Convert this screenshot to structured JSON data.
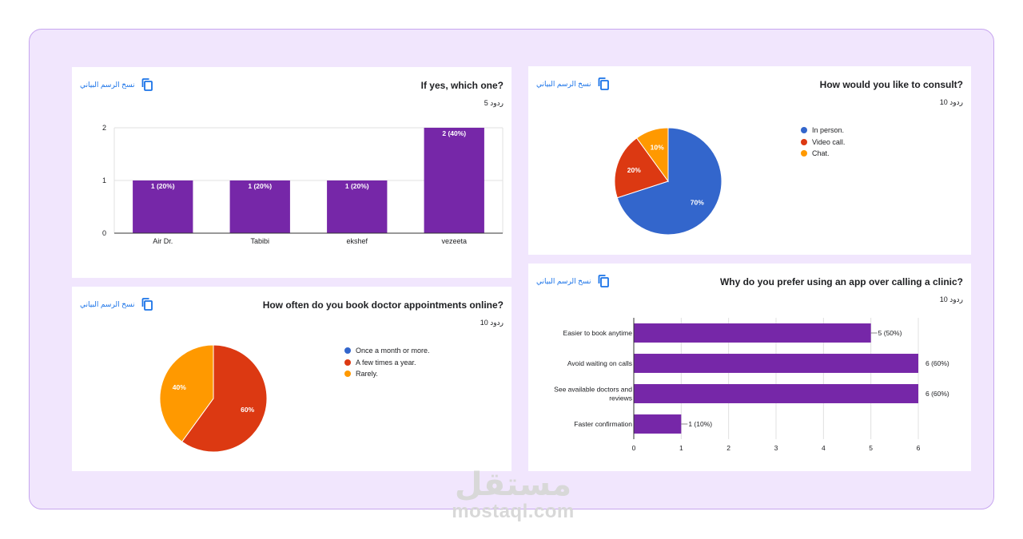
{
  "copy_chart_label": "نسخ الرسم البياني",
  "watermark": {
    "logo": "مستقل",
    "url": "mostaql.com"
  },
  "colors": {
    "purple": "#7627a8",
    "blue": "#3366cc",
    "red": "#dc3912",
    "orange": "#ff9900",
    "link": "#1a73e8"
  },
  "cards": {
    "q1": {
      "title": "If yes, which one?",
      "responses": "5 ردود"
    },
    "q2": {
      "title": "How would you like to consult?",
      "responses": "10 ردود"
    },
    "q3": {
      "title": "How often do you book doctor appointments online?",
      "responses": "10 ردود"
    },
    "q4": {
      "title": "Why do you prefer using an app over calling a clinic?",
      "responses": "10 ردود"
    }
  },
  "chart_data": [
    {
      "type": "bar",
      "categories": [
        "Air Dr.",
        "Tabibi",
        "ekshef",
        "vezeeta"
      ],
      "values": [
        1,
        1,
        1,
        2
      ],
      "data_labels": [
        "1 (20%)",
        "1 (20%)",
        "1 (20%)",
        "2 (40%)"
      ],
      "yticks": [
        "0",
        "1",
        "2"
      ],
      "ylim": [
        0,
        2
      ],
      "grid": true
    },
    {
      "type": "pie",
      "labels": [
        "In person.",
        "Video call.",
        "Chat."
      ],
      "values": [
        70,
        20,
        10
      ],
      "slice_labels": [
        "70%",
        "20%",
        "10%"
      ],
      "colors": [
        "#3366cc",
        "#dc3912",
        "#ff9900"
      ],
      "legend_position": "right"
    },
    {
      "type": "pie",
      "labels": [
        "Once a month or more.",
        "A few times a year.",
        "Rarely."
      ],
      "values": [
        0,
        60,
        40
      ],
      "slice_labels": [
        "",
        "60%",
        "40%"
      ],
      "colors": [
        "#3366cc",
        "#dc3912",
        "#ff9900"
      ],
      "legend_position": "right"
    },
    {
      "type": "bar",
      "orientation": "horizontal",
      "categories": [
        [
          "Easier to book anytime"
        ],
        [
          "Avoid waiting on calls"
        ],
        [
          "See available doctors and",
          "reviews"
        ],
        [
          "Faster confirmation"
        ]
      ],
      "values": [
        5,
        6,
        6,
        1
      ],
      "data_labels": [
        "5 (50%)",
        "6 (60%)",
        "6 (60%)",
        "1 (10%)"
      ],
      "xticks": [
        "0",
        "1",
        "2",
        "3",
        "4",
        "5",
        "6"
      ],
      "xlim": [
        0,
        6
      ],
      "grid": true
    }
  ]
}
